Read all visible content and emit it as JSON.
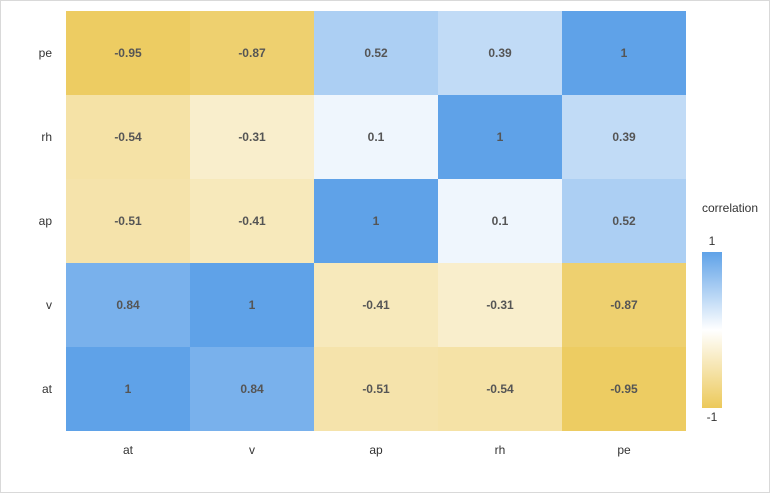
{
  "chart_data": {
    "type": "heatmap",
    "x_categories": [
      "at",
      "v",
      "ap",
      "rh",
      "pe"
    ],
    "y_categories": [
      "at",
      "v",
      "ap",
      "rh",
      "pe"
    ],
    "matrix": [
      [
        1,
        0.84,
        -0.51,
        -0.54,
        -0.95
      ],
      [
        0.84,
        1,
        -0.41,
        -0.31,
        -0.87
      ],
      [
        -0.51,
        -0.41,
        1,
        0.1,
        0.52
      ],
      [
        -0.54,
        -0.31,
        0.1,
        1,
        0.39
      ],
      [
        -0.95,
        -0.87,
        0.52,
        0.39,
        1
      ]
    ],
    "value_range": [
      -1,
      1
    ],
    "legend": {
      "title": "correlation",
      "max_label": "1",
      "min_label": "-1",
      "position": "right"
    },
    "colors": {
      "low": "#ecc95a",
      "mid": "#ffffff",
      "high": "#5fa2e8"
    },
    "grid": false
  }
}
